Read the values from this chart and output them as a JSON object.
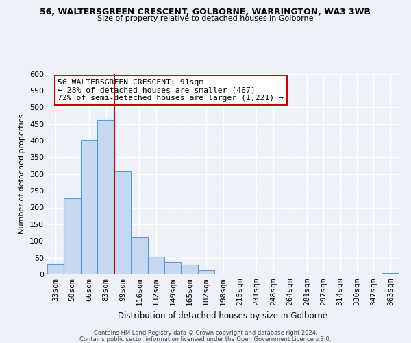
{
  "title": "56, WALTERSGREEN CRESCENT, GOLBORNE, WARRINGTON, WA3 3WB",
  "subtitle": "Size of property relative to detached houses in Golborne",
  "xlabel": "Distribution of detached houses by size in Golborne",
  "ylabel": "Number of detached properties",
  "bar_labels": [
    "33sqm",
    "50sqm",
    "66sqm",
    "83sqm",
    "99sqm",
    "116sqm",
    "132sqm",
    "149sqm",
    "165sqm",
    "182sqm",
    "198sqm",
    "215sqm",
    "231sqm",
    "248sqm",
    "264sqm",
    "281sqm",
    "297sqm",
    "314sqm",
    "330sqm",
    "347sqm",
    "363sqm"
  ],
  "bar_values": [
    30,
    228,
    402,
    462,
    308,
    110,
    54,
    37,
    29,
    13,
    0,
    0,
    0,
    0,
    0,
    0,
    0,
    0,
    0,
    0,
    5
  ],
  "bar_color": "#c6d9f1",
  "bar_edge_color": "#5b9bd5",
  "ylim": [
    0,
    600
  ],
  "yticks": [
    0,
    50,
    100,
    150,
    200,
    250,
    300,
    350,
    400,
    450,
    500,
    550,
    600
  ],
  "property_line_index": 3.5,
  "property_line_color": "#cc0000",
  "annotation_title": "56 WALTERSGREEN CRESCENT: 91sqm",
  "annotation_line1": "← 28% of detached houses are smaller (467)",
  "annotation_line2": "72% of semi-detached houses are larger (1,221) →",
  "annotation_box_color": "#ffffff",
  "annotation_box_edge": "#cc0000",
  "footer1": "Contains HM Land Registry data © Crown copyright and database right 2024.",
  "footer2": "Contains public sector information licensed under the Open Government Licence v.3.0.",
  "background_color": "#eef2f8",
  "plot_bg_color": "#eef2f8",
  "grid_color": "#ffffff"
}
